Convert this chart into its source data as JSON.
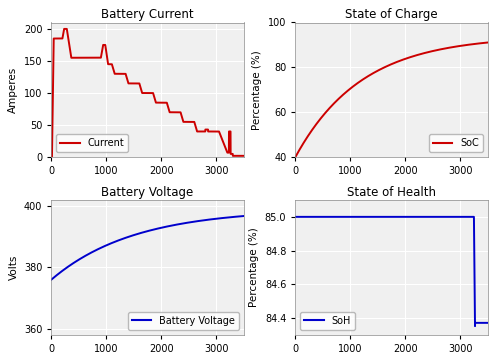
{
  "title_current": "Battery Current",
  "title_soc": "State of Charge",
  "title_voltage": "Battery Voltage",
  "title_soh": "State of Health",
  "ylabel_current": "Amperes",
  "ylabel_soc": "Percentage (%)",
  "ylabel_voltage": "Volts",
  "ylabel_soh": "Percentage (%)",
  "xlim": [
    0,
    3500
  ],
  "current_ylim": [
    0,
    210
  ],
  "soc_ylim": [
    40,
    100
  ],
  "voltage_ylim": [
    358,
    402
  ],
  "soh_ylim": [
    84.3,
    85.1
  ],
  "current_yticks": [
    0,
    50,
    100,
    150,
    200
  ],
  "soc_yticks": [
    40,
    60,
    80,
    100
  ],
  "voltage_yticks": [
    360,
    380,
    400
  ],
  "soh_yticks": [
    84.4,
    84.6,
    84.8,
    85.0
  ],
  "xticks": [
    0,
    1000,
    2000,
    3000
  ],
  "color_red": "#cc0000",
  "color_blue": "#0000cc",
  "legend_current": "Current",
  "legend_soc": "SoC",
  "legend_voltage": "Battery Voltage",
  "legend_soh": "SoH",
  "figsize": [
    4.96,
    3.62
  ],
  "dpi": 100
}
